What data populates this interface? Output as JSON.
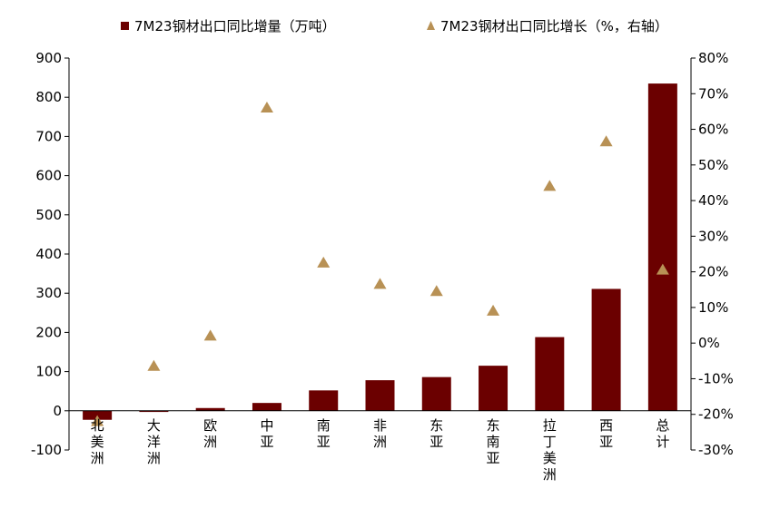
{
  "chart_data": {
    "type": "bar",
    "legend": [
      {
        "label": "7M23钢材出口同比增量（万吨）",
        "marker": "square",
        "color": "#6B0000"
      },
      {
        "label": "7M23钢材出口同比增长（%，右轴）",
        "marker": "triangle",
        "color": "#B89155"
      }
    ],
    "legend_position": "top",
    "categories": [
      "北美洲",
      "大洋洲",
      "欧洲",
      "中亚",
      "南亚",
      "非洲",
      "东亚",
      "东南亚",
      "拉丁美洲",
      "西亚",
      "总计"
    ],
    "category_lines": [
      [
        "北",
        "美",
        "洲"
      ],
      [
        "大",
        "洋",
        "洲"
      ],
      [
        "欧",
        "洲"
      ],
      [
        "中",
        "亚"
      ],
      [
        "南",
        "亚"
      ],
      [
        "非",
        "洲"
      ],
      [
        "东",
        "亚"
      ],
      [
        "东",
        "南",
        "亚"
      ],
      [
        "拉",
        "丁",
        "美",
        "洲"
      ],
      [
        "西",
        "亚"
      ],
      [
        "总",
        "计"
      ]
    ],
    "series": [
      {
        "name": "7M23钢材出口同比增量（万吨）",
        "type": "bar",
        "axis": "left",
        "color": "#6B0000",
        "values": [
          -23,
          -3,
          7,
          20,
          52,
          78,
          86,
          115,
          188,
          311,
          835
        ]
      },
      {
        "name": "7M23钢材出口同比增长（%，右轴）",
        "type": "scatter",
        "axis": "right",
        "color": "#B89155",
        "values": [
          -22,
          -6.5,
          2,
          66,
          22.5,
          16.5,
          14.5,
          9,
          44,
          56.5,
          20.5
        ]
      }
    ],
    "y_left": {
      "min": -100,
      "max": 900,
      "ticks": [
        -100,
        0,
        100,
        200,
        300,
        400,
        500,
        600,
        700,
        800,
        900
      ],
      "tick_labels": [
        "-100",
        "0",
        "100",
        "200",
        "300",
        "400",
        "500",
        "600",
        "700",
        "800",
        "900"
      ]
    },
    "y_right": {
      "min": -30,
      "max": 80,
      "ticks": [
        -30,
        -20,
        -10,
        0,
        10,
        20,
        30,
        40,
        50,
        60,
        70,
        80
      ],
      "tick_labels": [
        "-30%",
        "-20%",
        "-10%",
        "0%",
        "10%",
        "20%",
        "30%",
        "40%",
        "50%",
        "60%",
        "70%",
        "80%"
      ]
    },
    "grid": false
  }
}
